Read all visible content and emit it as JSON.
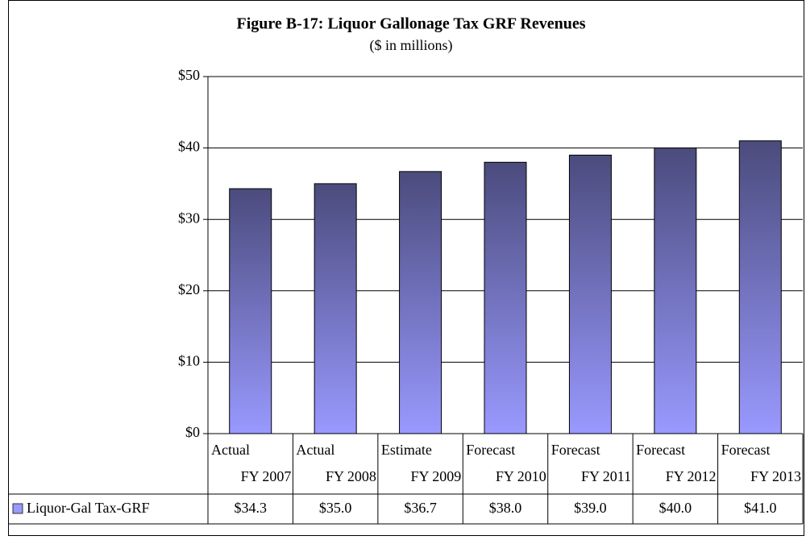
{
  "chart_data": {
    "type": "bar",
    "title": "Figure B-17: Liquor Gallonage Tax  GRF Revenues",
    "subtitle": "($ in millions)",
    "categories": [
      [
        "Actual",
        "FY 2007"
      ],
      [
        "Actual",
        "FY 2008"
      ],
      [
        "Estimate",
        "FY 2009"
      ],
      [
        "Forecast",
        "FY 2010"
      ],
      [
        "Forecast",
        "FY 2011"
      ],
      [
        "Forecast",
        "FY 2012"
      ],
      [
        "Forecast",
        "FY 2013"
      ]
    ],
    "series": [
      {
        "name": "Liquor-Gal Tax-GRF",
        "color": "#9999ff",
        "values": [
          34.3,
          35.0,
          36.7,
          38.0,
          39.0,
          40.0,
          41.0
        ],
        "value_labels": [
          "$34.3",
          "$35.0",
          "$36.7",
          "$38.0",
          "$39.0",
          "$40.0",
          "$41.0"
        ]
      }
    ],
    "ylim": [
      0,
      50
    ],
    "yticks": [
      {
        "value": 0,
        "label": "$0"
      },
      {
        "value": 10,
        "label": "$10"
      },
      {
        "value": 20,
        "label": "$20"
      },
      {
        "value": 30,
        "label": "$30"
      },
      {
        "value": 40,
        "label": "$40"
      },
      {
        "value": 50,
        "label": "$50"
      }
    ],
    "grid": true
  }
}
